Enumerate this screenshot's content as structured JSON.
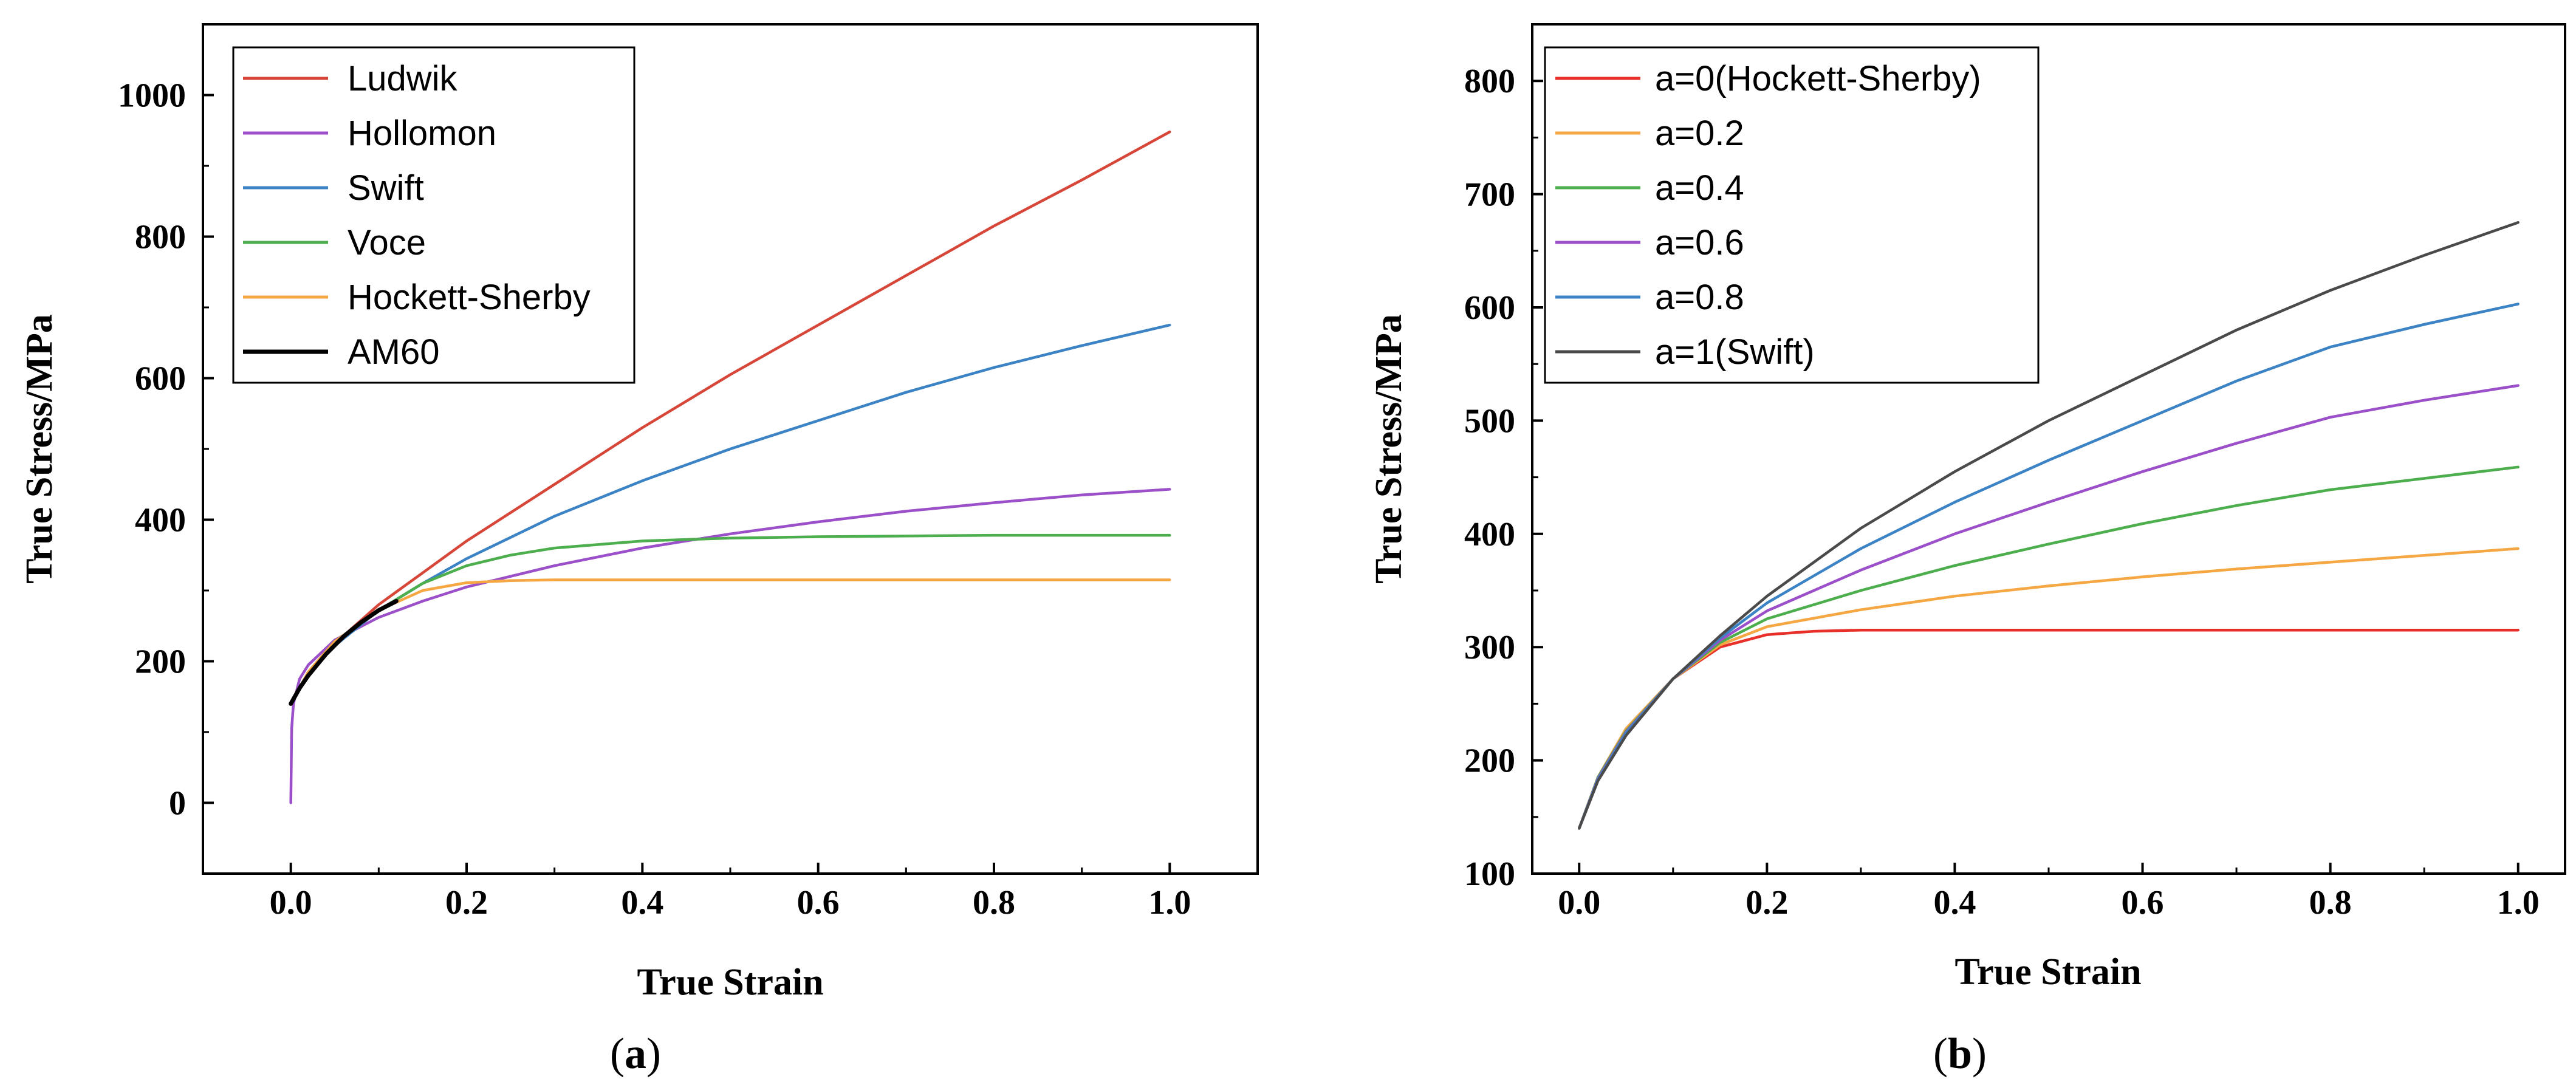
{
  "chart_data": [
    {
      "type": "line",
      "panel_label": "a",
      "xlabel": "True Strain",
      "ylabel": "True Stress/MPa",
      "xlim": [
        -0.1,
        1.1
      ],
      "ylim": [
        -100,
        1100
      ],
      "xticks": [
        0.0,
        0.2,
        0.4,
        0.6,
        0.8,
        1.0
      ],
      "xtick_labels": [
        "0.0",
        "0.2",
        "0.4",
        "0.6",
        "0.8",
        "1.0"
      ],
      "yticks": [
        0,
        200,
        400,
        600,
        800,
        1000
      ],
      "ytick_labels": [
        "0",
        "200",
        "400",
        "600",
        "800",
        "1000"
      ],
      "legend_position": "top-left",
      "series": [
        {
          "name": "Ludwik",
          "color": "#d6473a",
          "x": [
            0.0,
            0.02,
            0.05,
            0.1,
            0.15,
            0.2,
            0.3,
            0.4,
            0.5,
            0.6,
            0.7,
            0.8,
            0.9,
            1.0
          ],
          "y": [
            140,
            185,
            225,
            280,
            325,
            370,
            450,
            530,
            605,
            675,
            745,
            815,
            880,
            948
          ]
        },
        {
          "name": "Hollomon",
          "color": "#9b4fc9",
          "x": [
            0.0,
            0.001,
            0.003,
            0.01,
            0.02,
            0.05,
            0.1,
            0.15,
            0.2,
            0.3,
            0.4,
            0.5,
            0.6,
            0.7,
            0.8,
            0.9,
            1.0
          ],
          "y": [
            0,
            105,
            140,
            175,
            195,
            230,
            262,
            285,
            305,
            335,
            360,
            380,
            397,
            412,
            424,
            435,
            443
          ]
        },
        {
          "name": "Swift",
          "color": "#3b83c4",
          "x": [
            0.0,
            0.02,
            0.05,
            0.1,
            0.15,
            0.2,
            0.3,
            0.4,
            0.5,
            0.6,
            0.7,
            0.8,
            0.9,
            1.0
          ],
          "y": [
            140,
            182,
            222,
            272,
            310,
            345,
            405,
            455,
            500,
            540,
            580,
            615,
            646,
            675
          ]
        },
        {
          "name": "Voce",
          "color": "#4cae4c",
          "x": [
            0.0,
            0.02,
            0.05,
            0.1,
            0.15,
            0.2,
            0.25,
            0.3,
            0.4,
            0.5,
            0.6,
            0.8,
            1.0
          ],
          "y": [
            140,
            185,
            228,
            272,
            310,
            335,
            350,
            360,
            370,
            374,
            376,
            378,
            378
          ]
        },
        {
          "name": "Hockett-Sherby",
          "color": "#f5a744",
          "x": [
            0.0,
            0.02,
            0.05,
            0.1,
            0.15,
            0.2,
            0.25,
            0.3,
            0.4,
            0.6,
            0.8,
            1.0
          ],
          "y": [
            140,
            185,
            228,
            272,
            300,
            311,
            314,
            315,
            315,
            315,
            315,
            315
          ]
        },
        {
          "name": "AM60",
          "color": "#000000",
          "x": [
            0.0,
            0.01,
            0.02,
            0.04,
            0.06,
            0.08,
            0.1,
            0.12
          ],
          "y": [
            140,
            162,
            180,
            210,
            235,
            255,
            272,
            285
          ]
        }
      ]
    },
    {
      "type": "line",
      "panel_label": "b",
      "xlabel": "True Strain",
      "ylabel": "True Stress/MPa",
      "xlim": [
        -0.05,
        1.05
      ],
      "ylim": [
        100,
        850
      ],
      "xticks": [
        0.0,
        0.2,
        0.4,
        0.6,
        0.8,
        1.0
      ],
      "xtick_labels": [
        "0.0",
        "0.2",
        "0.4",
        "0.6",
        "0.8",
        "1.0"
      ],
      "yticks": [
        100,
        200,
        300,
        400,
        500,
        600,
        700,
        800
      ],
      "ytick_labels": [
        "100",
        "200",
        "300",
        "400",
        "500",
        "600",
        "700",
        "800"
      ],
      "legend_position": "top-left",
      "series": [
        {
          "name": "a=0(Hockett-Sherby)",
          "color": "#e8302a",
          "x": [
            0.0,
            0.02,
            0.05,
            0.1,
            0.15,
            0.2,
            0.25,
            0.3,
            0.4,
            0.6,
            0.8,
            1.0
          ],
          "y": [
            140,
            185,
            228,
            272,
            300,
            311,
            314,
            315,
            315,
            315,
            315,
            315
          ]
        },
        {
          "name": "a=0.2",
          "color": "#f5a744",
          "x": [
            0.0,
            0.02,
            0.05,
            0.1,
            0.15,
            0.2,
            0.3,
            0.4,
            0.5,
            0.6,
            0.7,
            0.8,
            0.9,
            1.0
          ],
          "y": [
            140,
            185,
            228,
            272,
            302,
            318,
            333,
            345,
            354,
            362,
            369,
            375,
            381,
            387
          ]
        },
        {
          "name": "a=0.4",
          "color": "#4cae4c",
          "x": [
            0.0,
            0.02,
            0.05,
            0.1,
            0.15,
            0.2,
            0.3,
            0.4,
            0.5,
            0.6,
            0.7,
            0.8,
            0.9,
            1.0
          ],
          "y": [
            140,
            185,
            226,
            272,
            304,
            325,
            350,
            372,
            391,
            409,
            425,
            439,
            449,
            459
          ]
        },
        {
          "name": "a=0.6",
          "color": "#9b4fc9",
          "x": [
            0.0,
            0.02,
            0.05,
            0.1,
            0.15,
            0.2,
            0.3,
            0.4,
            0.5,
            0.6,
            0.7,
            0.8,
            0.9,
            1.0
          ],
          "y": [
            140,
            184,
            225,
            272,
            306,
            332,
            368,
            400,
            428,
            455,
            480,
            503,
            518,
            531
          ]
        },
        {
          "name": "a=0.8",
          "color": "#3b83c4",
          "x": [
            0.0,
            0.02,
            0.05,
            0.1,
            0.15,
            0.2,
            0.3,
            0.4,
            0.5,
            0.6,
            0.7,
            0.8,
            0.9,
            1.0
          ],
          "y": [
            140,
            183,
            224,
            272,
            308,
            339,
            387,
            428,
            465,
            500,
            535,
            565,
            585,
            603
          ]
        },
        {
          "name": "a=1(Swift)",
          "color": "#4a4a4a",
          "x": [
            0.0,
            0.02,
            0.05,
            0.1,
            0.15,
            0.2,
            0.3,
            0.4,
            0.5,
            0.6,
            0.7,
            0.8,
            0.9,
            1.0
          ],
          "y": [
            140,
            182,
            222,
            272,
            310,
            345,
            405,
            455,
            500,
            540,
            580,
            615,
            646,
            675
          ]
        }
      ]
    }
  ]
}
